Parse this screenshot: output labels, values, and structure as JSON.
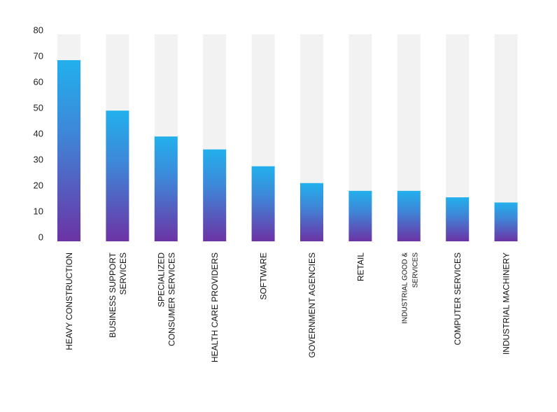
{
  "chart_data": {
    "type": "bar",
    "title": "",
    "xlabel": "",
    "ylabel": "",
    "ylim": [
      0,
      80
    ],
    "yticks": [
      0,
      10,
      20,
      30,
      40,
      50,
      60,
      70,
      80
    ],
    "ytick_labels": [
      "0",
      "10",
      "20",
      "30",
      "40",
      "50",
      "60",
      "70",
      "80"
    ],
    "grid": false,
    "legend": "none",
    "categories": [
      [
        "HEAVY CONSTRUCTION"
      ],
      [
        "BUSINESS SUPPORT",
        "SERVICES"
      ],
      [
        "SPECIALIZED",
        "CONSUMER SERVICES"
      ],
      [
        "HEALTH CARE PROVIDERS"
      ],
      [
        "SOFTWARE"
      ],
      [
        "GOVERNMENT AGENCIES"
      ],
      [
        "RETAIL"
      ],
      [
        "INDUSTRIAL GOOD &",
        "SERVICES"
      ],
      [
        "COMPUTER SERVICES"
      ],
      [
        "INDUSTRIAL MACHINERY"
      ]
    ],
    "values": [
      70,
      50.5,
      40.5,
      35.5,
      29,
      22.5,
      19.5,
      19.5,
      17,
      15
    ],
    "colors": {
      "track": "#f2f2f2",
      "gradient_top": "#22b0ec",
      "gradient_mid": "#3e87d8",
      "gradient_bottom": "#6c33a5",
      "text": "#222222"
    }
  }
}
